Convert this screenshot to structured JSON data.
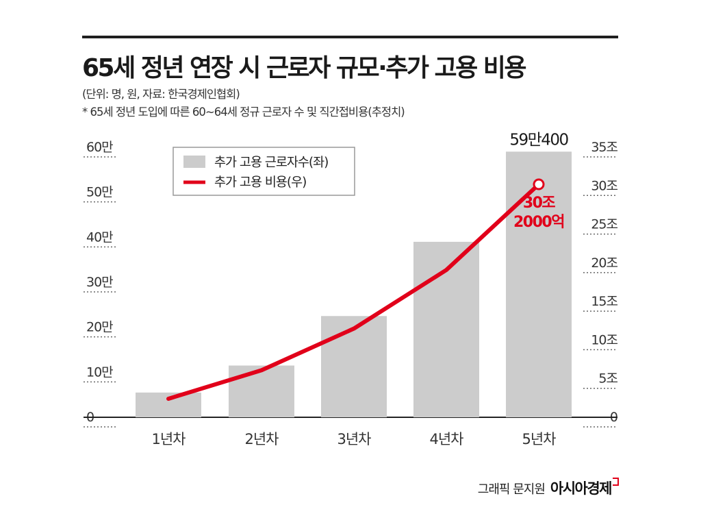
{
  "header": {
    "title": "65세 정년 연장 시 근로자 규모·추가 고용 비용",
    "unit_source": "(단위: 명, 원, 자료: 한국경제인협회)",
    "note": "* 65세 정년 도입에 따른 60~64세 정규 근로자 수 및 직간접비용(추정치)"
  },
  "credit": {
    "author": "그래픽 문지원",
    "brand": "아시아경제"
  },
  "colors": {
    "bar": "#cccccc",
    "line": "#e1001a",
    "rule": "#1f1f1f"
  },
  "chart_data": {
    "type": "bar+line",
    "categories": [
      "1년차",
      "2년차",
      "3년차",
      "4년차",
      "5년차"
    ],
    "left_axis": {
      "label": "추가 고용 근로자수",
      "ylim": [
        0,
        600000
      ],
      "ticks": [
        0,
        100000,
        200000,
        300000,
        400000,
        500000,
        600000
      ],
      "tick_labels": [
        "0",
        "10만",
        "20만",
        "30만",
        "40만",
        "50만",
        "60만"
      ]
    },
    "right_axis": {
      "label": "추가 고용 비용",
      "ylim": [
        0,
        35
      ],
      "ticks": [
        0,
        5,
        10,
        15,
        20,
        25,
        30,
        35
      ],
      "tick_labels": [
        "0",
        "5조",
        "10조",
        "15조",
        "20조",
        "25조",
        "30조",
        "35조"
      ]
    },
    "series": [
      {
        "name": "추가 고용 근로자수(좌)",
        "type": "bar",
        "axis": "left",
        "values": [
          55000,
          115000,
          225000,
          390000,
          590400
        ]
      },
      {
        "name": "추가 고용 비용(우)",
        "type": "line",
        "axis": "right",
        "values": [
          2.4,
          6.1,
          11.5,
          19.1,
          30.2
        ]
      }
    ],
    "annotations": {
      "bar_last": "59만400",
      "line_last": [
        "30조",
        "2000억"
      ]
    },
    "legend_position": "top-left"
  }
}
